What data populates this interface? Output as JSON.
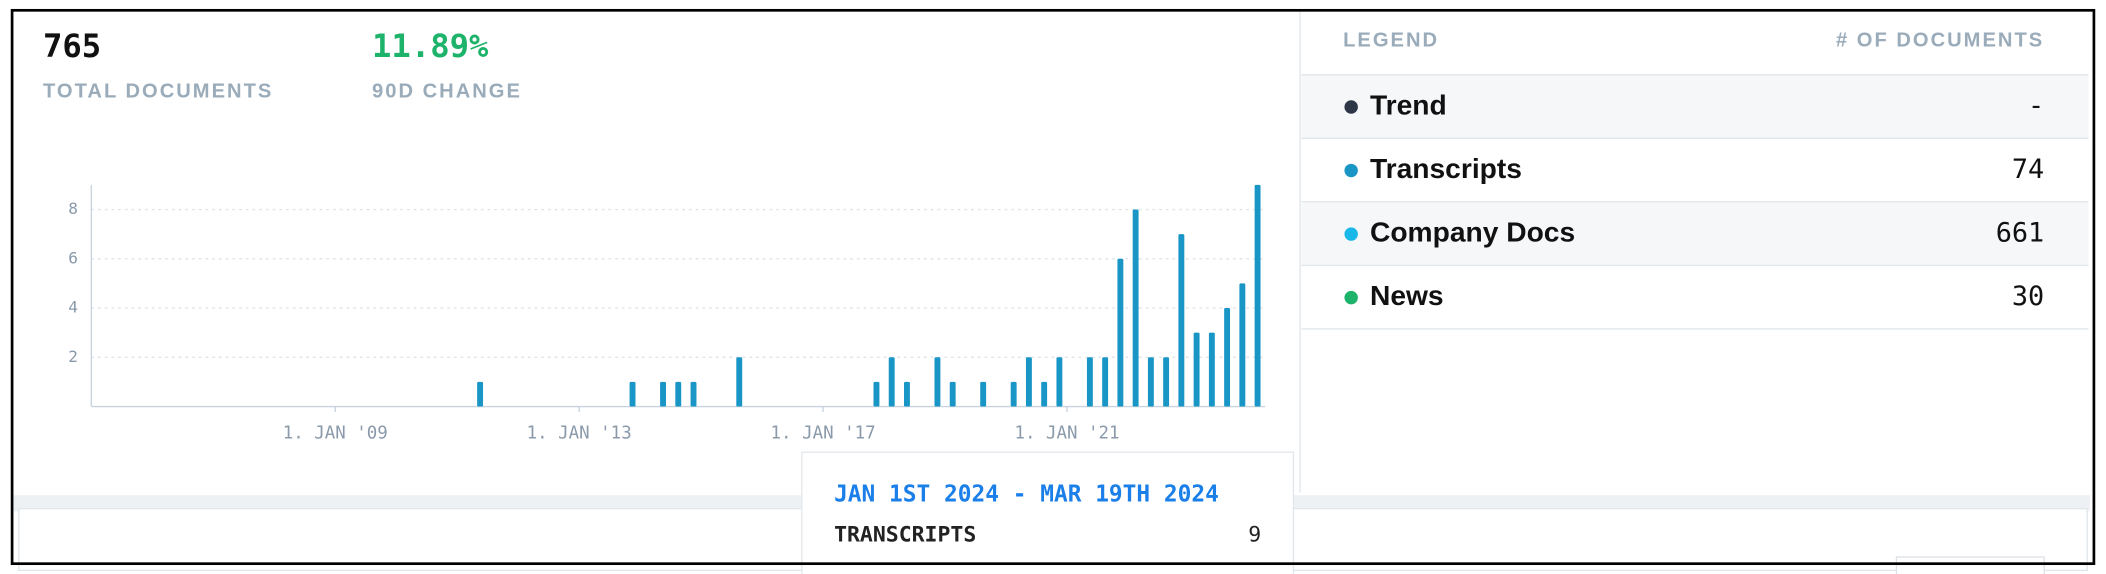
{
  "stats": [
    {
      "value": "765",
      "label": "TOTAL DOCUMENTS"
    },
    {
      "value": "11.89%",
      "label": "90D CHANGE"
    }
  ],
  "chart_data": {
    "type": "bar",
    "x": [
      "2011-04-01",
      "2013-10-01",
      "2014-04-01",
      "2014-07-01",
      "2014-10-01",
      "2015-07-01",
      "2017-10-01",
      "2018-01-01",
      "2018-04-01",
      "2018-10-01",
      "2019-01-01",
      "2019-07-01",
      "2020-01-01",
      "2020-04-01",
      "2020-07-01",
      "2020-10-01",
      "2021-04-01",
      "2021-07-01",
      "2021-10-01",
      "2022-01-01",
      "2022-04-01",
      "2022-07-01",
      "2022-10-01",
      "2023-01-01",
      "2023-04-01",
      "2023-07-01",
      "2023-10-01",
      "2024-01-01"
    ],
    "series": [
      {
        "name": "Transcripts",
        "color": "#1a96c6",
        "values": [
          1,
          1,
          1,
          1,
          1,
          2,
          1,
          2,
          1,
          2,
          1,
          1,
          1,
          2,
          1,
          2,
          2,
          2,
          6,
          8,
          2,
          2,
          7,
          3,
          3,
          4,
          5,
          9
        ]
      }
    ],
    "xlim": [
      "2005-01-01",
      "2024-04-01"
    ],
    "xticks": [
      {
        "value": "2009-01-01",
        "label": "1. JAN '09"
      },
      {
        "value": "2013-01-01",
        "label": "1. JAN '13"
      },
      {
        "value": "2017-01-01",
        "label": "1. JAN '17"
      },
      {
        "value": "2021-01-01",
        "label": "1. JAN '21"
      }
    ],
    "ylim": [
      0,
      9
    ],
    "yticks": [
      2,
      4,
      6,
      8
    ],
    "grid": true
  },
  "legend": {
    "header": [
      "LEGEND",
      "# OF DOCUMENTS"
    ],
    "rows": [
      {
        "name": "Trend",
        "value": "-",
        "color": "#2d3748"
      },
      {
        "name": "Transcripts",
        "value": "74",
        "color": "#1a96c6"
      },
      {
        "name": "Company Docs",
        "value": "661",
        "color": "#1ab8e8"
      },
      {
        "name": "News",
        "value": "30",
        "color": "#1db36a"
      }
    ]
  },
  "tooltip": {
    "title": "JAN 1ST 2024 - MAR 19TH 2024",
    "label": "TRANSCRIPTS",
    "value": 9
  }
}
